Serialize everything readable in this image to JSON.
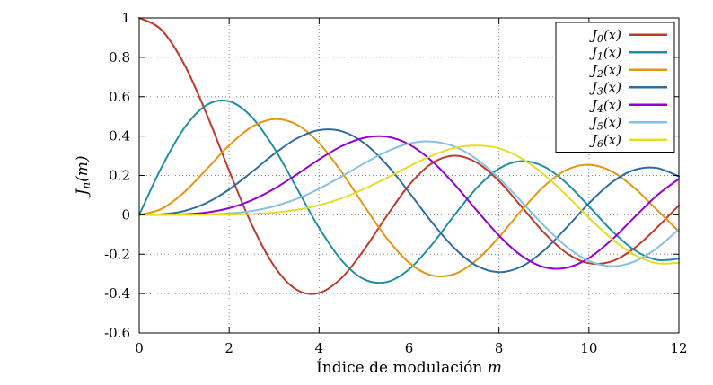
{
  "figure": {
    "background": "#ffffff",
    "border_color": "#000000",
    "grid_color": "#888888",
    "text_color": "#000000"
  },
  "chart_data": {
    "type": "line",
    "title": "",
    "xlabel": {
      "text": "Índice de modulación",
      "var": "m"
    },
    "ylabel": {
      "base": "J",
      "sub": "n",
      "rest": "(m)"
    },
    "xlim": [
      0,
      12
    ],
    "ylim": [
      -0.6,
      1
    ],
    "grid": true,
    "legend": {
      "position": "top-right",
      "border": true
    },
    "xticks": {
      "values": [
        0,
        2,
        4,
        6,
        8,
        10,
        12
      ],
      "labels": [
        "0",
        "2",
        "4",
        "6",
        "8",
        "10",
        "12"
      ]
    },
    "yticks": {
      "values": [
        -0.6,
        -0.4,
        -0.2,
        0,
        0.2,
        0.4,
        0.6,
        0.8,
        1
      ],
      "labels": [
        "-0.6",
        "-0.4",
        "-0.2",
        "0",
        "0.2",
        "0.4",
        "0.6",
        "0.8",
        "1"
      ]
    },
    "x": [
      0,
      0.5,
      1,
      1.5,
      2,
      2.5,
      3,
      3.5,
      4,
      4.5,
      5,
      5.5,
      6,
      6.5,
      7,
      7.5,
      8,
      8.5,
      9,
      9.5,
      10,
      10.5,
      11,
      11.5,
      12
    ],
    "series": [
      {
        "label": {
          "base": "J",
          "sub": "0",
          "rest": "(x)"
        },
        "color": "#c0392b",
        "values": [
          1.0,
          0.9385,
          0.7652,
          0.5118,
          0.2239,
          -0.0484,
          -0.2601,
          -0.3801,
          -0.3971,
          -0.3205,
          -0.1776,
          -0.0068,
          0.1506,
          0.2601,
          0.3001,
          0.2663,
          0.1717,
          0.0419,
          -0.0903,
          -0.1939,
          -0.2459,
          -0.2366,
          -0.1712,
          -0.0677,
          0.0477
        ]
      },
      {
        "label": {
          "base": "J",
          "sub": "1",
          "rest": "(x)"
        },
        "color": "#1d8f9e",
        "values": [
          0.0,
          0.2423,
          0.4401,
          0.5579,
          0.5767,
          0.4971,
          0.3391,
          0.1374,
          -0.066,
          -0.2311,
          -0.3276,
          -0.3414,
          -0.2767,
          -0.1538,
          -0.0047,
          0.1352,
          0.2346,
          0.2731,
          0.2453,
          0.1613,
          0.0435,
          -0.0789,
          -0.1768,
          -0.2284,
          -0.2234
        ]
      },
      {
        "label": {
          "base": "J",
          "sub": "2",
          "rest": "(x)"
        },
        "color": "#e69510",
        "values": [
          0.0,
          0.0306,
          0.1149,
          0.2321,
          0.3528,
          0.4461,
          0.4861,
          0.4586,
          0.3641,
          0.2178,
          0.0466,
          -0.1173,
          -0.2429,
          -0.3074,
          -0.3014,
          -0.2303,
          -0.113,
          0.0223,
          0.1448,
          0.2279,
          0.2546,
          0.2216,
          0.139,
          0.0279,
          -0.0849
        ]
      },
      {
        "label": {
          "base": "J",
          "sub": "3",
          "rest": "(x)"
        },
        "color": "#2e6da4",
        "values": [
          0.0,
          0.0026,
          0.0196,
          0.061,
          0.1289,
          0.2166,
          0.3091,
          0.3868,
          0.4302,
          0.4247,
          0.3648,
          0.2561,
          0.1148,
          -0.0353,
          -0.1676,
          -0.2581,
          -0.2911,
          -0.2626,
          -0.1809,
          -0.0653,
          0.0584,
          0.1633,
          0.2273,
          0.2381,
          0.1951
        ]
      },
      {
        "label": {
          "base": "J",
          "sub": "4",
          "rest": "(x)"
        },
        "color": "#9400d3",
        "values": [
          0.0,
          0.0002,
          0.0025,
          0.0118,
          0.034,
          0.0738,
          0.132,
          0.2044,
          0.2811,
          0.3484,
          0.3912,
          0.3967,
          0.3576,
          0.2748,
          0.1578,
          0.0238,
          -0.1054,
          -0.2077,
          -0.2655,
          -0.2691,
          -0.2196,
          -0.1283,
          -0.015,
          0.0963,
          0.1825
        ]
      },
      {
        "label": {
          "base": "J",
          "sub": "5",
          "rest": "(x)"
        },
        "color": "#85c1e3",
        "values": [
          0.0,
          0.0,
          0.0002,
          0.0018,
          0.007,
          0.0195,
          0.043,
          0.0804,
          0.1321,
          0.1947,
          0.2611,
          0.3209,
          0.3621,
          0.3725,
          0.3479,
          0.2835,
          0.1858,
          0.0671,
          -0.055,
          -0.1613,
          -0.2341,
          -0.2611,
          -0.2383,
          -0.1711,
          -0.0735
        ]
      },
      {
        "label": {
          "base": "J",
          "sub": "6",
          "rest": "(x)"
        },
        "color": "#e4dc28",
        "values": [
          0.0,
          0.0,
          0.0,
          0.0002,
          0.0012,
          0.0042,
          0.0114,
          0.0254,
          0.0491,
          0.0843,
          0.131,
          0.1868,
          0.2458,
          0.2999,
          0.3392,
          0.3515,
          0.3376,
          0.2867,
          0.2043,
          0.0993,
          -0.0145,
          -0.1203,
          -0.2016,
          -0.2451,
          -0.2437
        ]
      }
    ]
  }
}
